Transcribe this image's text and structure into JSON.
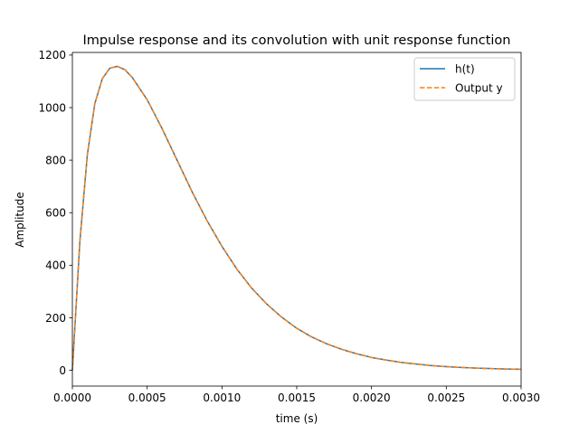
{
  "chart_data": {
    "type": "line",
    "title": "Impulse response and its convolution with unit response function",
    "xlabel": "time (s)",
    "ylabel": "Amplitude",
    "xlim": [
      0,
      0.003
    ],
    "ylim": [
      -60,
      1210
    ],
    "xticks": [
      0.0,
      0.0005,
      0.001,
      0.0015,
      0.002,
      0.0025,
      0.003
    ],
    "xtick_labels": [
      "0.0000",
      "0.0005",
      "0.0010",
      "0.0015",
      "0.0020",
      "0.0025",
      "0.0030"
    ],
    "yticks": [
      0,
      200,
      400,
      600,
      800,
      1000,
      1200
    ],
    "ytick_labels": [
      "0",
      "200",
      "400",
      "600",
      "800",
      "1000",
      "1200"
    ],
    "grid": false,
    "legend_position": "top-right",
    "x": [
      0,
      5e-05,
      0.0001,
      0.00015,
      0.0002,
      0.00025,
      0.0003,
      0.00035,
      0.0004,
      0.0005,
      0.0006,
      0.0007,
      0.0008,
      0.0009,
      0.001,
      0.0011,
      0.0012,
      0.0013,
      0.0014,
      0.0015,
      0.0016,
      0.0017,
      0.0018,
      0.0019,
      0.002,
      0.0021,
      0.0022,
      0.0023,
      0.0024,
      0.0025,
      0.0026,
      0.0027,
      0.0028,
      0.0029,
      0.003
    ],
    "series": [
      {
        "name": "h(t)",
        "color": "#1f77b4",
        "style": "solid",
        "values": [
          0,
          490,
          820,
          1015,
          1110,
          1150,
          1157,
          1145,
          1115,
          1030,
          920,
          800,
          680,
          570,
          472,
          385,
          312,
          252,
          202,
          160,
          127,
          101,
          80,
          63,
          49,
          39,
          30,
          24,
          18,
          14,
          11,
          8.5,
          6.6,
          5.1,
          4
        ]
      },
      {
        "name": "Output y",
        "color": "#ff7f0e",
        "style": "dashed",
        "values": [
          0,
          490,
          820,
          1015,
          1110,
          1150,
          1157,
          1145,
          1115,
          1030,
          920,
          800,
          680,
          570,
          472,
          385,
          312,
          252,
          202,
          160,
          127,
          101,
          80,
          63,
          49,
          39,
          30,
          24,
          18,
          14,
          11,
          8.5,
          6.6,
          5.1,
          4
        ]
      }
    ]
  }
}
